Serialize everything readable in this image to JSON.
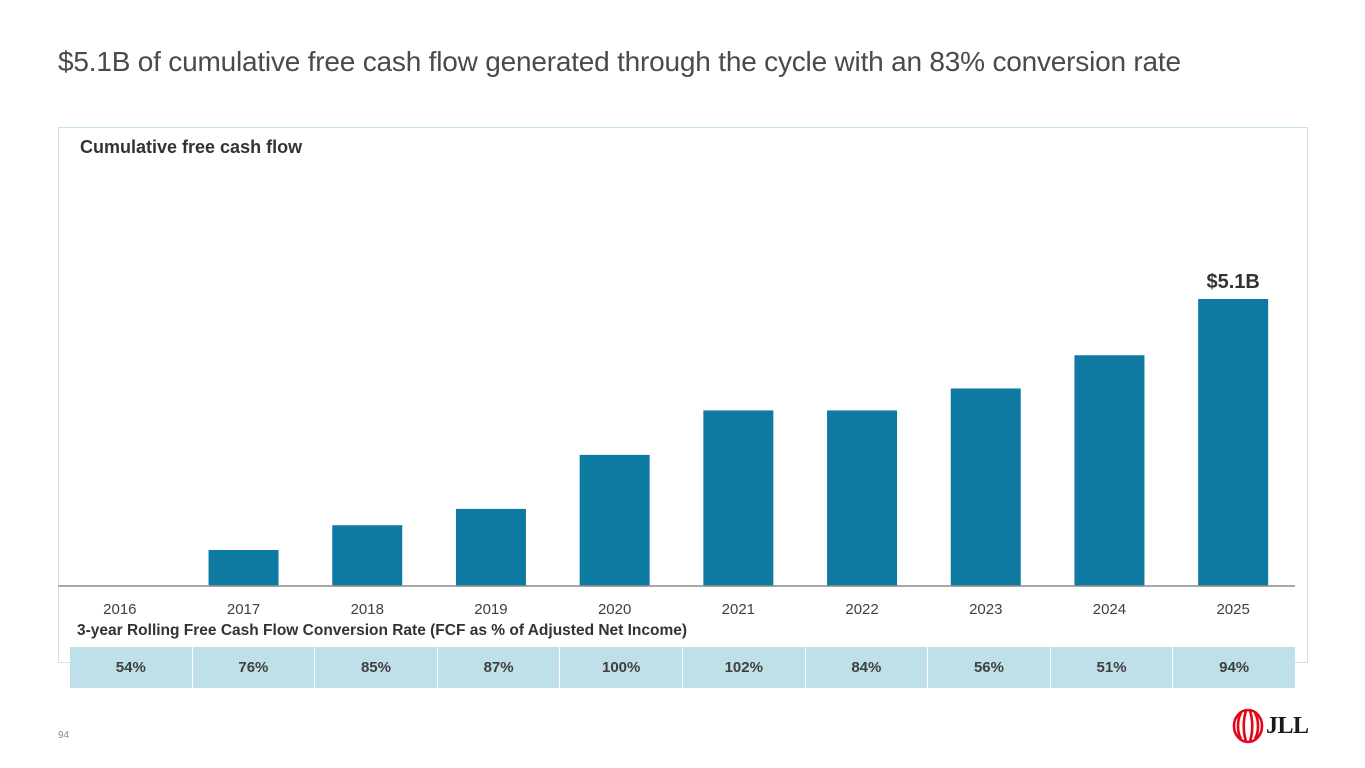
{
  "page": {
    "title": "$5.1B of cumulative free cash flow generated through the cycle with an 83% conversion rate",
    "page_number": "94",
    "logo_text": "JLL",
    "logo_icon": "jll-flame-icon"
  },
  "colors": {
    "bar": "#0e7aa1",
    "panel_border": "#c7e3ea",
    "table_fill": "#bfe0e8",
    "logo_red": "#e30613"
  },
  "chart_data": {
    "type": "bar",
    "title": "Cumulative free cash flow",
    "xlabel": "",
    "ylabel": "",
    "categories": [
      "2016",
      "2017",
      "2018",
      "2019",
      "2020",
      "2021",
      "2022",
      "2023",
      "2024",
      "2025"
    ],
    "series": [
      {
        "values": [
          0.0,
          0.64,
          1.08,
          1.37,
          2.33,
          3.12,
          3.12,
          3.51,
          4.1,
          5.1
        ]
      }
    ],
    "value_unit": "$B",
    "ylim": [
      0,
      5.1
    ],
    "annotations": [
      {
        "category": "2025",
        "text": "$5.1B"
      }
    ],
    "grid": false,
    "legend": "none"
  },
  "conversion_rate": {
    "label": "3-year Rolling Free Cash Flow Conversion Rate (FCF as % of Adjusted Net Income)",
    "values": [
      "54%",
      "76%",
      "85%",
      "87%",
      "100%",
      "102%",
      "84%",
      "56%",
      "51%",
      "94%"
    ]
  }
}
